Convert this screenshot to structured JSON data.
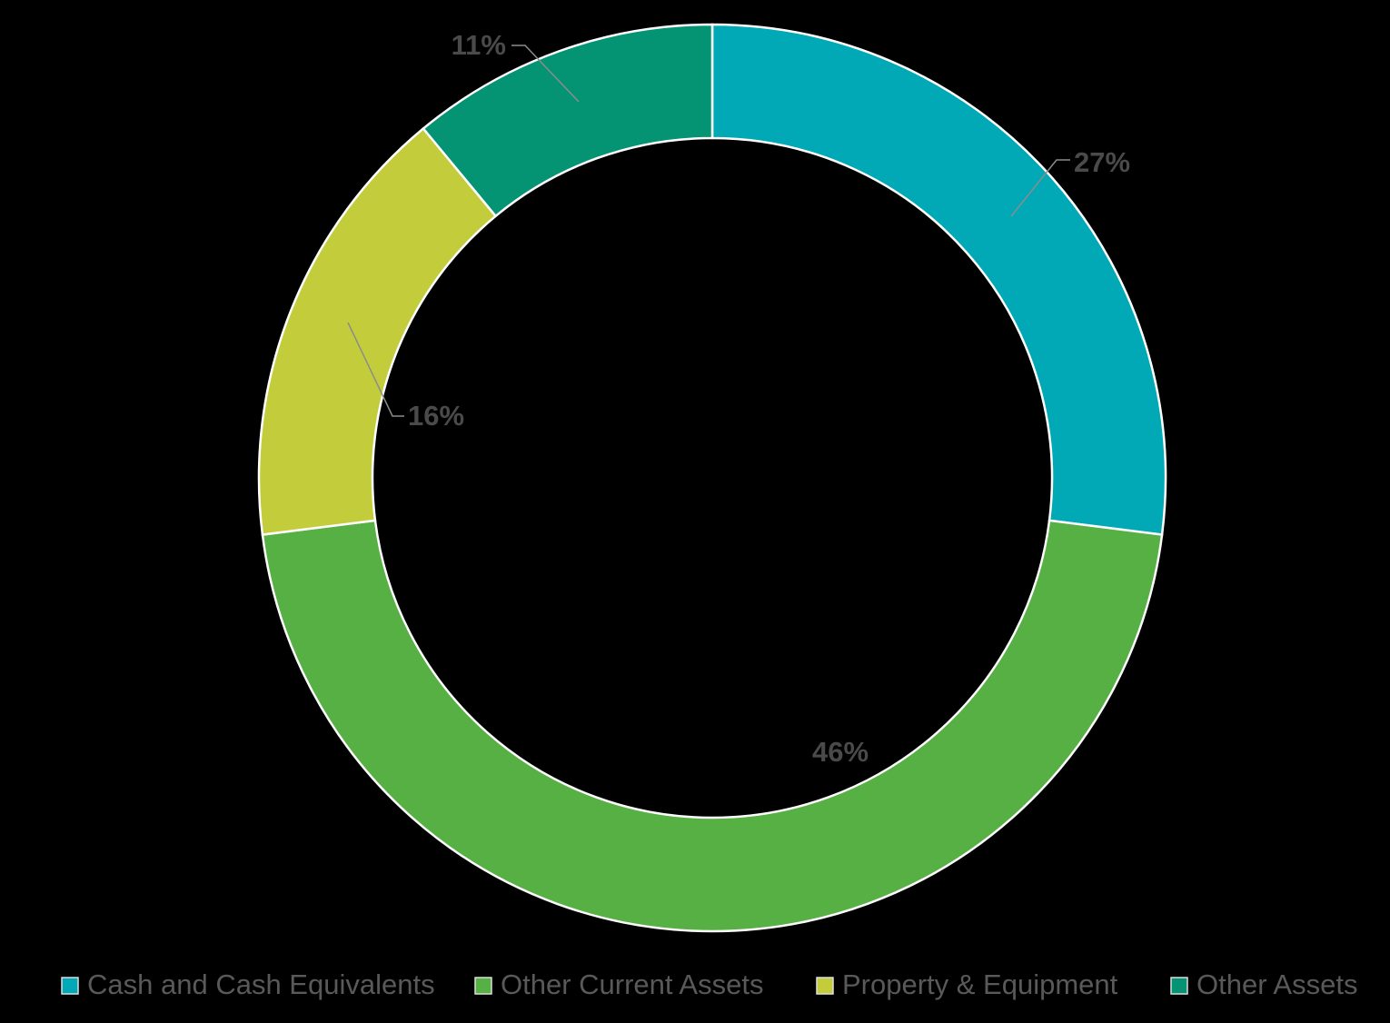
{
  "chart_data": {
    "type": "donut",
    "categories": [
      "Cash and Cash Equivalents",
      "Other Current Assets",
      "Property & Equipment",
      "Other Assets"
    ],
    "values": [
      27,
      46,
      16,
      11
    ],
    "value_labels": [
      "27%",
      "46%",
      "16%",
      "11%"
    ],
    "colors": [
      "#00a9b5",
      "#57b043",
      "#c3cd3c",
      "#049474"
    ],
    "legend": "bottom"
  }
}
